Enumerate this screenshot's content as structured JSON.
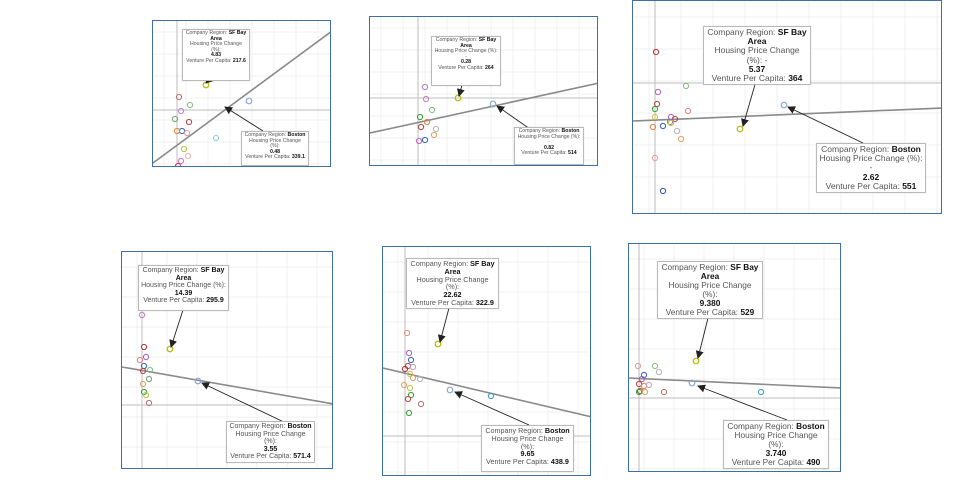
{
  "colors": {
    "panel_border": "#3c6ea8",
    "grid": "#e6e6e6",
    "ref_line": "#bdbdbd",
    "trend_line": "#8a8a8a",
    "arrow": "#222222",
    "sf_marker": "#b8b800",
    "boston_marker": "#8aa6d8"
  },
  "chart_data": [
    {
      "type": "scatter",
      "labels": {
        "region": "Company Region:",
        "hpc": "Housing Price Change (%):",
        "vpc": "Venture Per Capita:"
      },
      "sf": {
        "region": "SF Bay Area",
        "hpc_display": "4.83",
        "vpc_display": "217.6",
        "x": 4.83,
        "y": 217.6
      },
      "boston": {
        "region": "Boston",
        "hpc_display": "0.48",
        "vpc_display": "339.1",
        "x": 0.48,
        "y": 339.1
      }
    },
    {
      "type": "scatter",
      "labels": {
        "region": "Company Region:",
        "hpc": "Housing Price Change (%): -",
        "vpc": "Venture Per Capita:"
      },
      "sf": {
        "region": "SF Bay Area",
        "hpc_display": "0.28",
        "vpc_display": "264",
        "x": -0.28,
        "y": 264
      },
      "boston": {
        "region": "Boston",
        "hpc_display": "0.82",
        "vpc_display": "514",
        "x": -0.82,
        "y": 514
      }
    },
    {
      "type": "scatter",
      "labels": {
        "region": "Company Region:",
        "hpc": "Housing Price Change (%): -",
        "vpc": "Venture Per Capita:"
      },
      "sf": {
        "region": "SF Bay Area",
        "hpc_display": "5.37",
        "vpc_display": "364",
        "x": -5.37,
        "y": 364
      },
      "boston": {
        "region": "Boston",
        "hpc_display": "2.62",
        "vpc_display": "551",
        "x": -2.62,
        "y": 551
      }
    },
    {
      "type": "scatter",
      "labels": {
        "region": "Company Region:",
        "hpc": "Housing Price Change (%):",
        "vpc": "Venture Per Capita:"
      },
      "sf": {
        "region": "SF Bay Area",
        "hpc_display": "14.39",
        "vpc_display": "295.9",
        "x": 14.39,
        "y": 295.9
      },
      "boston": {
        "region": "Boston",
        "hpc_display": "3.55",
        "vpc_display": "571.4",
        "x": 3.55,
        "y": 571.4
      }
    },
    {
      "type": "scatter",
      "labels": {
        "region": "Company Region:",
        "hpc": "Housing Price Change (%):",
        "vpc": "Venture Per Capita:"
      },
      "sf": {
        "region": "SF Bay Area",
        "hpc_display": "22.62",
        "vpc_display": "322.9",
        "x": 22.62,
        "y": 322.9
      },
      "boston": {
        "region": "Boston",
        "hpc_display": "9.65",
        "vpc_display": "438.9",
        "x": 9.65,
        "y": 438.9
      }
    },
    {
      "type": "scatter",
      "labels": {
        "region": "Company Region:",
        "hpc": "Housing Price Change (%):",
        "vpc": "Venture Per Capita:"
      },
      "sf": {
        "region": "SF Bay Area",
        "hpc_display": "9.380",
        "vpc_display": "529",
        "x": 9.38,
        "y": 529
      },
      "boston": {
        "region": "Boston",
        "hpc_display": "3.740",
        "vpc_display": "490",
        "x": 3.74,
        "y": 490
      }
    }
  ]
}
